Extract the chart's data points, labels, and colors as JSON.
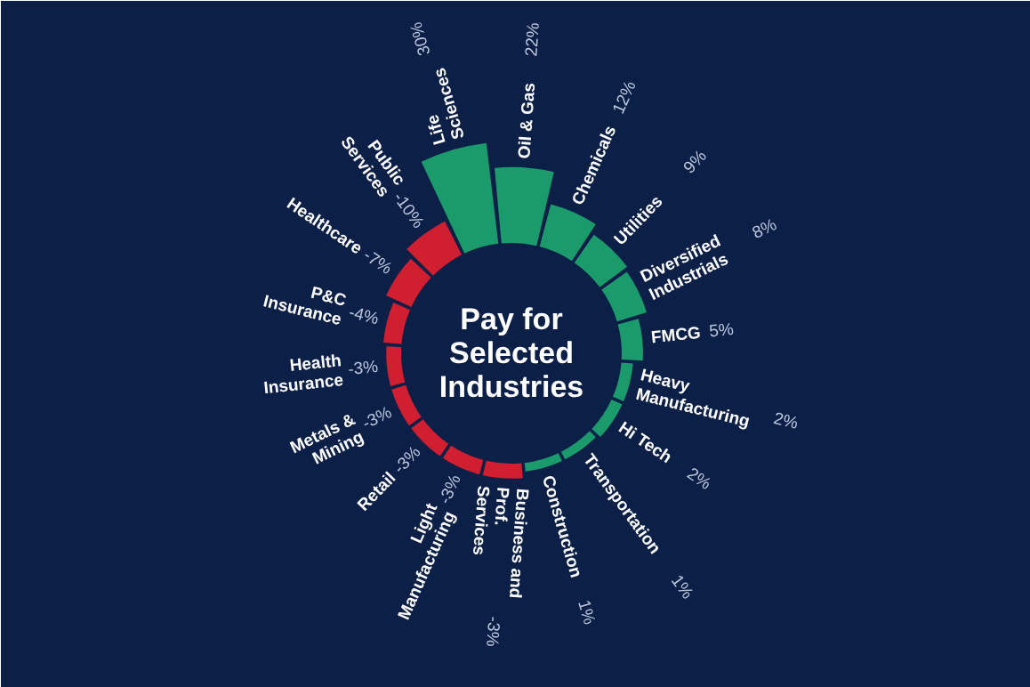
{
  "chart_data": {
    "type": "other",
    "title": "Pay for Selected Industries",
    "categories": [
      "Life Sciences",
      "Oil & Gas",
      "Chemicals",
      "Utilities",
      "Diversified Industrials",
      "FMCG",
      "Heavy Manufacturing",
      "Hi Tech",
      "Transportation",
      "Construction",
      "Business and Prof. Services",
      "Light Manufacturing",
      "Retail",
      "Metals & Mining",
      "Health Insurance",
      "P&C Insurance",
      "Healthcare",
      "Public Services"
    ],
    "values": [
      30,
      22,
      12,
      9,
      8,
      5,
      2,
      2,
      1,
      1,
      -3,
      -3,
      -3,
      -3,
      -3,
      -4,
      -7,
      -10
    ],
    "value_labels": [
      "30%",
      "22%",
      "12%",
      "9%",
      "8%",
      "5%",
      "2%",
      "2%",
      "1%",
      "1%",
      "-3%",
      "-3%",
      "-3%",
      "-3%",
      "-3%",
      "-4%",
      "-7%",
      "-10%"
    ],
    "colors": [
      "#1b9a6b",
      "#1b9a6b",
      "#1b9a6b",
      "#1b9a6b",
      "#1b9a6b",
      "#1b9a6b",
      "#1b9a6b",
      "#1b9a6b",
      "#1b9a6b",
      "#1b9a6b",
      "#d01f30",
      "#d01f30",
      "#d01f30",
      "#d01f30",
      "#d01f30",
      "#d01f30",
      "#d01f30",
      "#d01f30"
    ]
  }
}
